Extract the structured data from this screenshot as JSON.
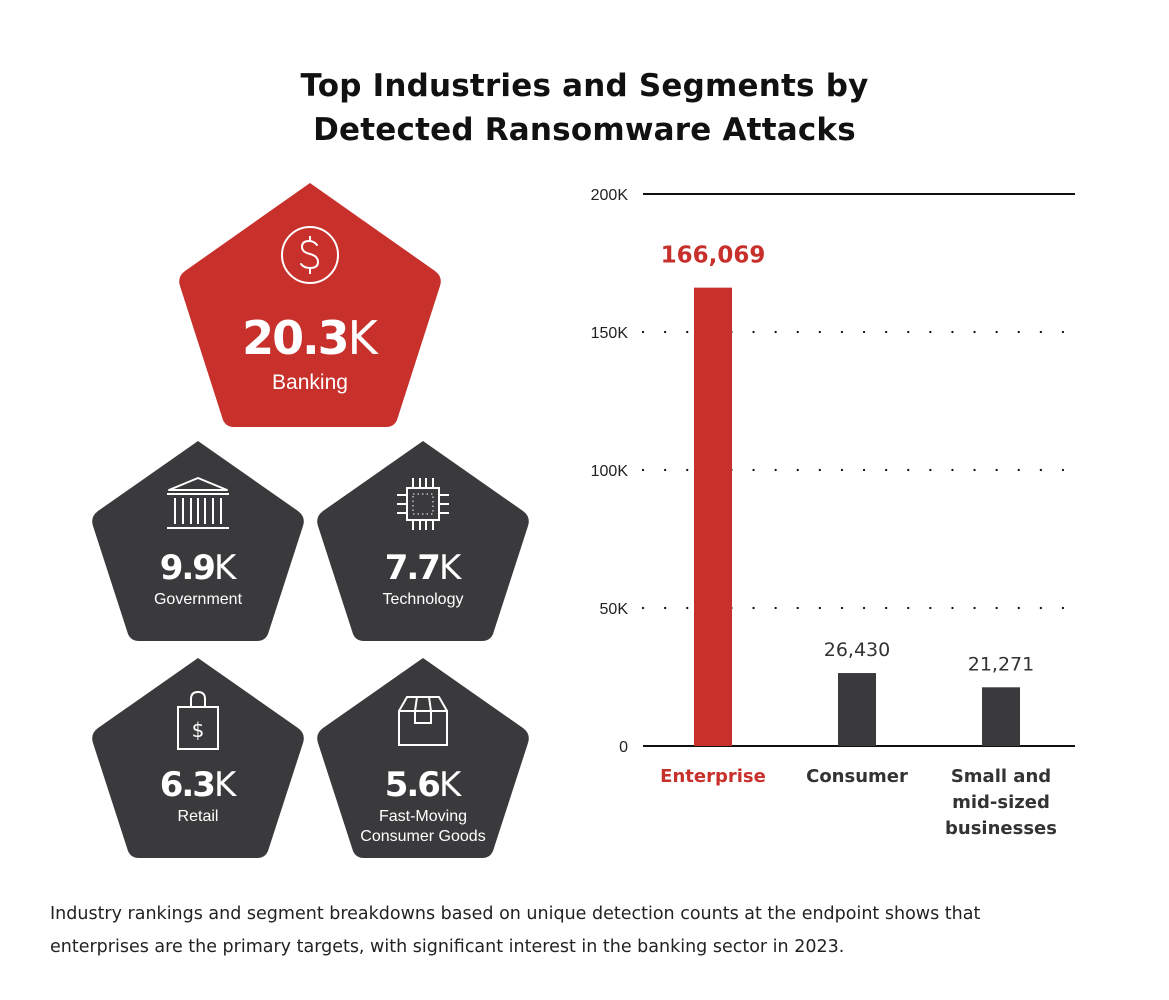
{
  "title": {
    "line1": "Top Industries and Segments by",
    "line2": "Detected Ransomware Attacks"
  },
  "colors": {
    "red": "#c8302b",
    "dark": "#3a3a3c"
  },
  "industries": [
    {
      "value": "20.3",
      "unit": "K",
      "label": "Banking",
      "icon": "dollar-circle-icon",
      "color": "#c8302b"
    },
    {
      "value": "9.9",
      "unit": "K",
      "label": "Government",
      "icon": "government-building-icon",
      "color": "#3a3a3c"
    },
    {
      "value": "7.7",
      "unit": "K",
      "label": "Technology",
      "icon": "microchip-icon",
      "color": "#3a3a3c"
    },
    {
      "value": "6.3",
      "unit": "K",
      "label": "Retail",
      "icon": "shopping-bag-icon",
      "color": "#3a3a3c"
    },
    {
      "value": "5.6",
      "unit": "K",
      "label_line1": "Fast-Moving",
      "label_line2": "Consumer Goods",
      "icon": "package-box-icon",
      "color": "#3a3a3c"
    }
  ],
  "chart_data": {
    "type": "bar",
    "categories": [
      "Enterprise",
      "Consumer",
      "Small and mid-sized businesses"
    ],
    "category_lines": [
      [
        "Enterprise"
      ],
      [
        "Consumer"
      ],
      [
        "Small and",
        "mid-sized",
        "businesses"
      ]
    ],
    "values": [
      166069,
      26430,
      21271
    ],
    "value_labels": [
      "166,069",
      "26,430",
      "21,271"
    ],
    "colors": [
      "#c8302b",
      "#3a3a3c",
      "#3a3a3c"
    ],
    "highlight_index": 0,
    "ylim": [
      0,
      200000
    ],
    "yticks": [
      0,
      50000,
      100000,
      150000,
      200000
    ],
    "ytick_labels": [
      "0",
      "50K",
      "100K",
      "150K",
      "200K"
    ],
    "grid": "dotted"
  },
  "caption": {
    "line1": "Industry rankings and segment breakdowns based on unique detection counts at the endpoint shows that",
    "line2": "enterprises are the primary targets, with significant interest in the banking sector in 2023."
  }
}
